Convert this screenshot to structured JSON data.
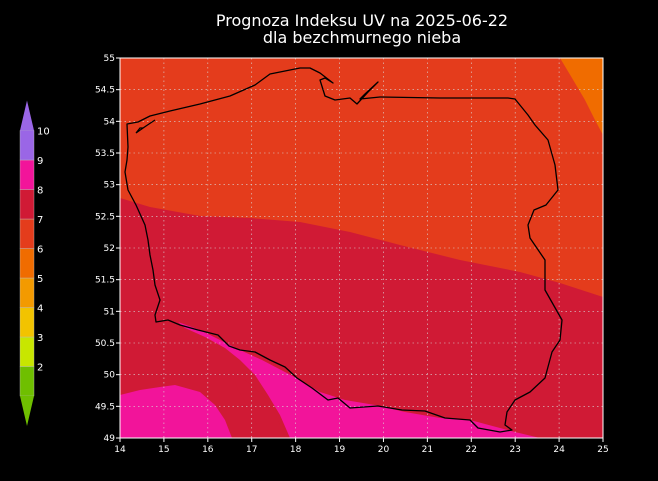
{
  "title": {
    "line1": "Prognoza Indeksu UV na 2025-06-22",
    "line2": "dla bezchmurnego nieba"
  },
  "axes": {
    "x_ticks": [
      "14",
      "15",
      "16",
      "17",
      "18",
      "19",
      "20",
      "21",
      "22",
      "23",
      "24",
      "25"
    ],
    "y_ticks": [
      "55",
      "54.5",
      "54",
      "53.5",
      "53",
      "52.5",
      "52",
      "51.5",
      "51",
      "50.5",
      "50",
      "49.5",
      "49"
    ],
    "x_range": [
      14,
      25
    ],
    "y_range": [
      49,
      55
    ],
    "grid": true
  },
  "legend": {
    "placement": "left",
    "levels": [
      {
        "label": "2",
        "color": "#6fbf00"
      },
      {
        "label": "3",
        "color": "#c8e600"
      },
      {
        "label": "4",
        "color": "#f2c300"
      },
      {
        "label": "5",
        "color": "#f39a00"
      },
      {
        "label": "6",
        "color": "#f06c00"
      },
      {
        "label": "7",
        "color": "#e43c1c"
      },
      {
        "label": "8",
        "color": "#d01a35"
      },
      {
        "label": "9",
        "color": "#f2149a"
      },
      {
        "label": "10",
        "color": "#9a66e6"
      }
    ]
  },
  "zones": {
    "uv6_color": "#f06c00",
    "uv7_color": "#e43c1c",
    "uv8_color": "#d01a35",
    "uv9_color": "#f2149a"
  }
}
